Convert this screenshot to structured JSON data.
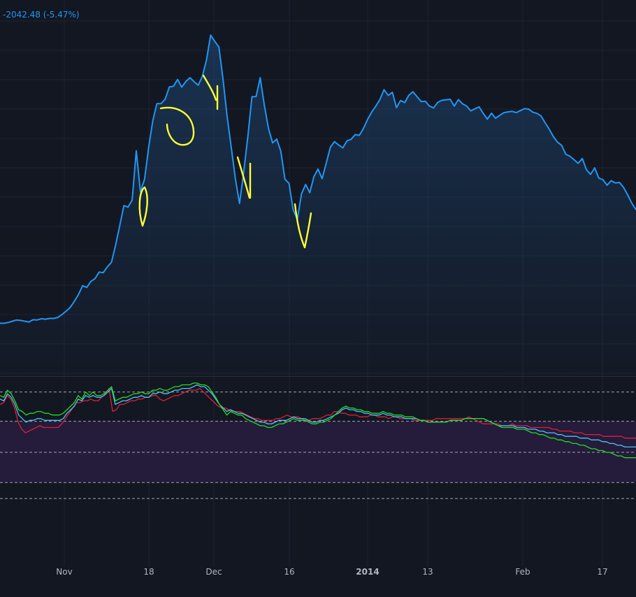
{
  "header": {
    "change_text": "-2042.48 (-5.47%)"
  },
  "colors": {
    "background": "#131722",
    "grid": "#1f2331",
    "price_line": "#2196f3",
    "annotation": "#ffff33",
    "band_fill": "#241c3a",
    "fast_line": "#22dd22",
    "mid_line": "#4fc3f7",
    "slow_line": "#e01e3c",
    "axis_text": "#b2b5be"
  },
  "chart_data": [
    {
      "type": "area",
      "panel": "price",
      "series": [
        {
          "values": [
            1.0,
            1.0,
            1.3,
            1.8,
            2.3,
            2.1,
            1.8,
            1.5,
            2.4,
            2.3,
            2.8,
            2.6,
            2.9,
            2.9,
            3.3,
            4.4,
            5.8,
            7.3,
            9.7,
            12.4,
            15.9,
            15.2,
            17.6,
            18.7,
            21.3,
            21.1,
            23.4,
            25.2,
            32.1,
            39.8,
            47.7,
            47.1,
            49.9,
            69.5,
            53.2,
            58.1,
            70.8,
            81.4,
            88.2,
            88.2,
            90.0,
            94.8,
            95.1,
            97.8,
            94.7,
            97.0,
            98.5,
            96.9,
            95.5,
            99.0,
            105.6,
            115.4,
            112.9,
            110.7,
            97.9,
            83.0,
            70.8,
            58.3,
            48.5,
            60.8,
            74.8,
            90.9,
            91.0,
            98.5,
            87.6,
            78.4,
            72.6,
            74.1,
            69.3,
            58.2,
            56.5,
            45.9,
            42.3,
            52.4,
            56.1,
            52.8,
            59.2,
            62.2,
            58.4,
            64.6,
            70.9,
            73.1,
            71.8,
            70.6,
            73.4,
            74.0,
            75.9,
            75.6,
            78.3,
            81.9,
            84.8,
            87.2,
            89.8,
            93.7,
            91.4,
            92.7,
            86.6,
            89.4,
            88.6,
            91.5,
            92.9,
            90.9,
            89.0,
            89.1,
            87.2,
            86.5,
            88.7,
            89.5,
            89.7,
            89.9,
            87.2,
            89.8,
            88.1,
            87.2,
            85.3,
            86.1,
            86.9,
            84.3,
            82.0,
            84.4,
            82.4,
            83.5,
            84.6,
            84.9,
            85.1,
            84.6,
            85.4,
            86.2,
            86.0,
            84.8,
            84.3,
            83.3,
            80.6,
            78.0,
            75.1,
            72.9,
            71.6,
            68.1,
            67.3,
            65.9,
            64.5,
            66.4,
            61.9,
            60.1,
            62.7,
            58.6,
            58.0,
            55.8,
            57.6,
            56.7,
            56.9,
            54.9,
            51.9,
            48.6,
            46.1
          ]
        }
      ]
    },
    {
      "type": "line",
      "panel": "oscillator",
      "ylim": [
        0,
        100
      ],
      "reference_levels": [
        95,
        78.5,
        61,
        44,
        35
      ],
      "shaded_band": [
        44,
        78.5
      ],
      "series": [
        {
          "values": [
            88,
            89,
            93,
            91,
            86,
            78,
            74,
            72,
            73,
            74,
            75,
            76,
            75,
            75,
            75,
            75,
            75,
            77,
            80,
            83,
            86,
            89,
            89,
            90,
            90,
            91,
            90,
            90,
            92,
            94,
            97,
            84,
            85,
            88,
            88,
            89,
            90,
            90,
            91,
            91,
            92,
            92,
            93,
            93,
            91,
            90,
            91,
            92,
            93,
            93,
            94,
            95,
            96,
            96,
            96,
            97,
            95,
            93,
            91,
            89,
            87,
            86,
            86,
            85,
            84,
            84,
            84,
            83,
            82,
            81,
            80,
            80,
            79,
            79,
            79,
            79,
            80,
            80,
            81,
            82,
            81,
            81,
            81,
            80,
            79,
            79,
            80,
            80,
            80,
            81,
            82,
            82,
            84,
            84,
            83,
            83,
            82,
            82,
            82,
            81,
            81,
            81,
            82,
            82,
            81,
            81,
            81,
            80,
            81,
            81,
            80,
            80,
            80,
            80,
            79,
            79,
            79,
            79,
            79,
            79,
            80,
            80,
            80,
            80,
            80,
            80,
            80,
            80,
            80,
            81,
            80,
            79,
            78,
            77,
            77,
            77,
            77,
            77,
            76,
            76,
            76,
            77,
            76,
            76,
            76,
            76,
            75,
            75,
            75,
            75,
            75,
            75,
            74,
            74,
            73,
            73,
            73,
            73,
            72,
            72,
            72,
            71,
            71,
            71,
            71,
            71,
            70,
            70,
            70,
            70,
            70,
            70,
            69,
            69,
            69,
            69
          ]
        },
        {
          "values": [
            91,
            90,
            94,
            92,
            88,
            82,
            80,
            78,
            79,
            79,
            80,
            80,
            79,
            79,
            79,
            79,
            79,
            80,
            83,
            85,
            87,
            91,
            90,
            93,
            92,
            93,
            92,
            92,
            93,
            95,
            97,
            88,
            89,
            90,
            90,
            91,
            92,
            92,
            93,
            92,
            92,
            94,
            94,
            95,
            94,
            94,
            95,
            96,
            96,
            97,
            97,
            97,
            98,
            99,
            98,
            98,
            96,
            94,
            91,
            88,
            86,
            84,
            85,
            84,
            83,
            83,
            82,
            81,
            80,
            79,
            78,
            78,
            77,
            77,
            78,
            79,
            79,
            79,
            80,
            81,
            80,
            80,
            80,
            79,
            78,
            78,
            79,
            79,
            80,
            81,
            82,
            83,
            85,
            86,
            85,
            85,
            84,
            84,
            83,
            83,
            82,
            82,
            82,
            83,
            82,
            82,
            81,
            81,
            81,
            80,
            80,
            80,
            80,
            79,
            79,
            78,
            78,
            78,
            78,
            78,
            78,
            79,
            79,
            79,
            79,
            80,
            80,
            80,
            80,
            80,
            80,
            79,
            78,
            77,
            76,
            76,
            76,
            76,
            76,
            75,
            75,
            75,
            74,
            74,
            74,
            73,
            73,
            72,
            72,
            72,
            71,
            71,
            70,
            70,
            70,
            70,
            69,
            69,
            69,
            68,
            68,
            68,
            67,
            67,
            66,
            66,
            65,
            65,
            64,
            64,
            64,
            64
          ]
        },
        {
          "values": [
            93,
            92,
            96,
            94,
            90,
            85,
            84,
            82,
            83,
            83,
            84,
            84,
            83,
            83,
            82,
            82,
            82,
            83,
            85,
            87,
            89,
            93,
            91,
            95,
            93,
            95,
            93,
            93,
            94,
            96,
            98,
            90,
            91,
            92,
            92,
            93,
            94,
            94,
            95,
            94,
            94,
            96,
            96,
            97,
            96,
            96,
            97,
            98,
            98,
            99,
            99,
            99,
            100,
            100,
            99,
            99,
            98,
            95,
            92,
            88,
            85,
            82,
            84,
            83,
            82,
            82,
            80,
            79,
            78,
            77,
            76,
            76,
            75,
            75,
            76,
            77,
            77,
            78,
            79,
            80,
            79,
            79,
            79,
            78,
            77,
            77,
            78,
            78,
            79,
            80,
            82,
            84,
            86,
            87,
            86,
            86,
            85,
            85,
            84,
            84,
            83,
            83,
            83,
            84,
            83,
            83,
            82,
            82,
            82,
            81,
            81,
            81,
            80,
            79,
            79,
            78,
            78,
            78,
            78,
            78,
            78,
            79,
            79,
            79,
            79,
            80,
            80,
            80,
            80,
            80,
            80,
            79,
            78,
            77,
            76,
            75,
            75,
            75,
            75,
            74,
            74,
            74,
            73,
            72,
            72,
            71,
            71,
            70,
            69,
            69,
            68,
            68,
            67,
            67,
            66,
            66,
            65,
            65,
            64,
            63,
            63,
            62,
            62,
            61,
            61,
            60,
            59,
            59,
            58,
            58,
            58,
            58
          ]
        }
      ]
    },
    {
      "type": "table",
      "panel": "x-axis",
      "x_tick_labels": [
        "Nov",
        "18",
        "Dec",
        "16",
        "2014",
        "13",
        "Feb",
        "17"
      ]
    }
  ]
}
